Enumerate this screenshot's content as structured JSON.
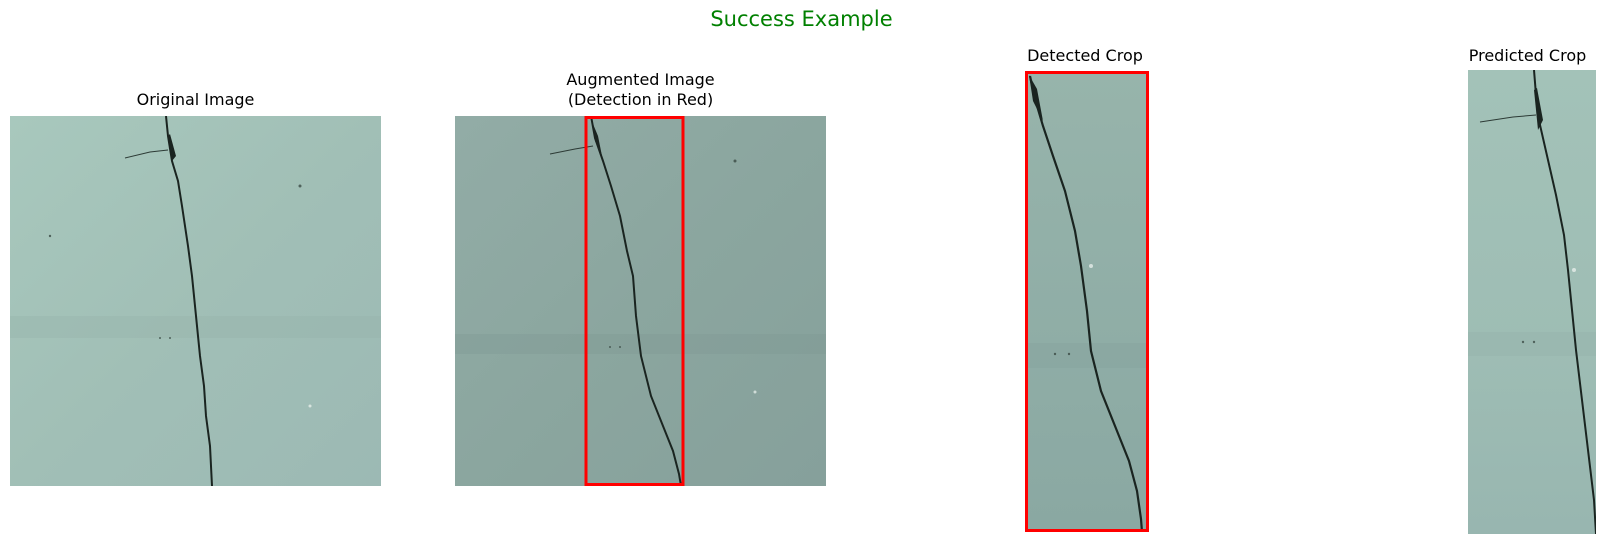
{
  "figure": {
    "title": "Success Example",
    "title_color": "#008000"
  },
  "panels": [
    {
      "title": "Original Image"
    },
    {
      "title_line1": "Augmented Image",
      "title_line2": "(Detection in Red)"
    },
    {
      "title": "Detected Crop"
    },
    {
      "title": "Predicted Crop"
    }
  ],
  "colors": {
    "wall": "#a4c2b9",
    "wall_augmented": "#8fa9a3",
    "detection_box": "#ff0000",
    "crack": "#1a2420"
  }
}
